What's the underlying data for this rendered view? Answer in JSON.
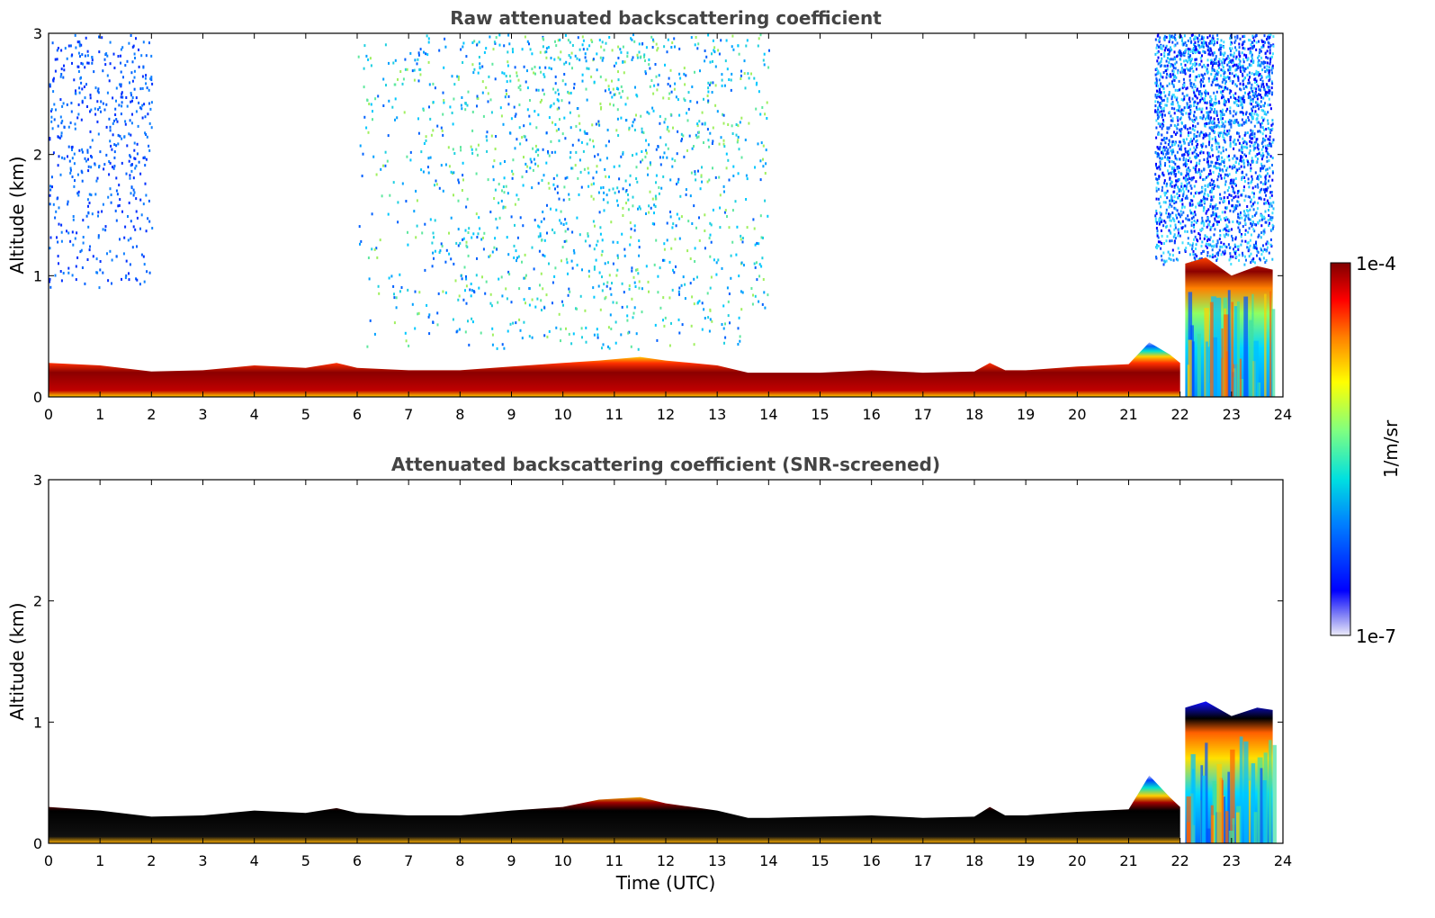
{
  "chart_data": [
    {
      "type": "heatmap",
      "title": "Raw attenuated backscattering coefficient",
      "xlabel": "",
      "ylabel": "Altitude (km)",
      "xlim": [
        0,
        24
      ],
      "ylim": [
        0,
        3
      ],
      "xticks": [
        "0",
        "1",
        "2",
        "3",
        "4",
        "5",
        "6",
        "7",
        "8",
        "9",
        "10",
        "11",
        "12",
        "13",
        "14",
        "15",
        "16",
        "17",
        "18",
        "19",
        "20",
        "21",
        "22",
        "23",
        "24"
      ],
      "yticks": [
        "0",
        "1",
        "2",
        "3"
      ],
      "boundary_layer_top_km": [
        [
          0,
          0.28
        ],
        [
          1,
          0.26
        ],
        [
          2,
          0.21
        ],
        [
          3,
          0.22
        ],
        [
          4,
          0.26
        ],
        [
          5,
          0.24
        ],
        [
          5.6,
          0.28
        ],
        [
          6,
          0.24
        ],
        [
          7,
          0.22
        ],
        [
          8,
          0.22
        ],
        [
          9,
          0.25
        ],
        [
          10,
          0.28
        ],
        [
          10.7,
          0.3
        ],
        [
          11.5,
          0.33
        ],
        [
          12,
          0.3
        ],
        [
          13,
          0.26
        ],
        [
          13.6,
          0.2
        ],
        [
          14,
          0.2
        ],
        [
          15,
          0.2
        ],
        [
          16,
          0.22
        ],
        [
          17,
          0.2
        ],
        [
          18,
          0.21
        ],
        [
          18.3,
          0.28
        ],
        [
          18.6,
          0.22
        ],
        [
          19,
          0.22
        ],
        [
          20,
          0.25
        ],
        [
          21,
          0.27
        ],
        [
          21.4,
          0.45
        ],
        [
          21.8,
          0.35
        ],
        [
          22,
          0.28
        ]
      ],
      "cloud_layer_km": [
        [
          22.1,
          1.1
        ],
        [
          22.5,
          1.15
        ],
        [
          23,
          1.0
        ],
        [
          23.5,
          1.08
        ],
        [
          23.8,
          1.05
        ]
      ],
      "noise_regions": [
        {
          "x": [
            0,
            2
          ],
          "y": [
            0.9,
            3
          ],
          "level": "weak"
        },
        {
          "x": [
            6,
            14
          ],
          "y": [
            0.4,
            3
          ],
          "level": "moderate"
        },
        {
          "x": [
            21.5,
            23.8
          ],
          "y": [
            1.1,
            3
          ],
          "level": "strong"
        }
      ],
      "grid": false
    },
    {
      "type": "heatmap",
      "title": "Attenuated backscattering coefficient (SNR-screened)",
      "xlabel": "Time (UTC)",
      "ylabel": "Altitude (km)",
      "xlim": [
        0,
        24
      ],
      "ylim": [
        0,
        3
      ],
      "xticks": [
        "0",
        "1",
        "2",
        "3",
        "4",
        "5",
        "6",
        "7",
        "8",
        "9",
        "10",
        "11",
        "12",
        "13",
        "14",
        "15",
        "16",
        "17",
        "18",
        "19",
        "20",
        "21",
        "22",
        "23",
        "24"
      ],
      "yticks": [
        "0",
        "1",
        "2",
        "3"
      ],
      "boundary_layer_top_km": [
        [
          0,
          0.3
        ],
        [
          1,
          0.27
        ],
        [
          2,
          0.22
        ],
        [
          3,
          0.23
        ],
        [
          4,
          0.27
        ],
        [
          5,
          0.25
        ],
        [
          5.6,
          0.29
        ],
        [
          6,
          0.25
        ],
        [
          7,
          0.23
        ],
        [
          8,
          0.23
        ],
        [
          9,
          0.27
        ],
        [
          10,
          0.3
        ],
        [
          10.7,
          0.36
        ],
        [
          11.5,
          0.38
        ],
        [
          12,
          0.33
        ],
        [
          13,
          0.27
        ],
        [
          13.6,
          0.21
        ],
        [
          14,
          0.21
        ],
        [
          15,
          0.22
        ],
        [
          16,
          0.23
        ],
        [
          17,
          0.21
        ],
        [
          18,
          0.22
        ],
        [
          18.3,
          0.3
        ],
        [
          18.6,
          0.23
        ],
        [
          19,
          0.23
        ],
        [
          20,
          0.26
        ],
        [
          21,
          0.28
        ],
        [
          21.4,
          0.56
        ],
        [
          21.8,
          0.38
        ],
        [
          22,
          0.3
        ]
      ],
      "cloud_layer_km": [
        [
          22.1,
          1.12
        ],
        [
          22.5,
          1.17
        ],
        [
          23,
          1.05
        ],
        [
          23.5,
          1.12
        ],
        [
          23.8,
          1.1
        ]
      ],
      "grid": false
    }
  ],
  "colorbar": {
    "max_label": "1e-4",
    "min_label": "1e-7",
    "unit_label": "1/m/sr",
    "colormap": "jet"
  },
  "colors": {
    "title": "#444444",
    "axis": "#000000",
    "background": "#ffffff"
  }
}
